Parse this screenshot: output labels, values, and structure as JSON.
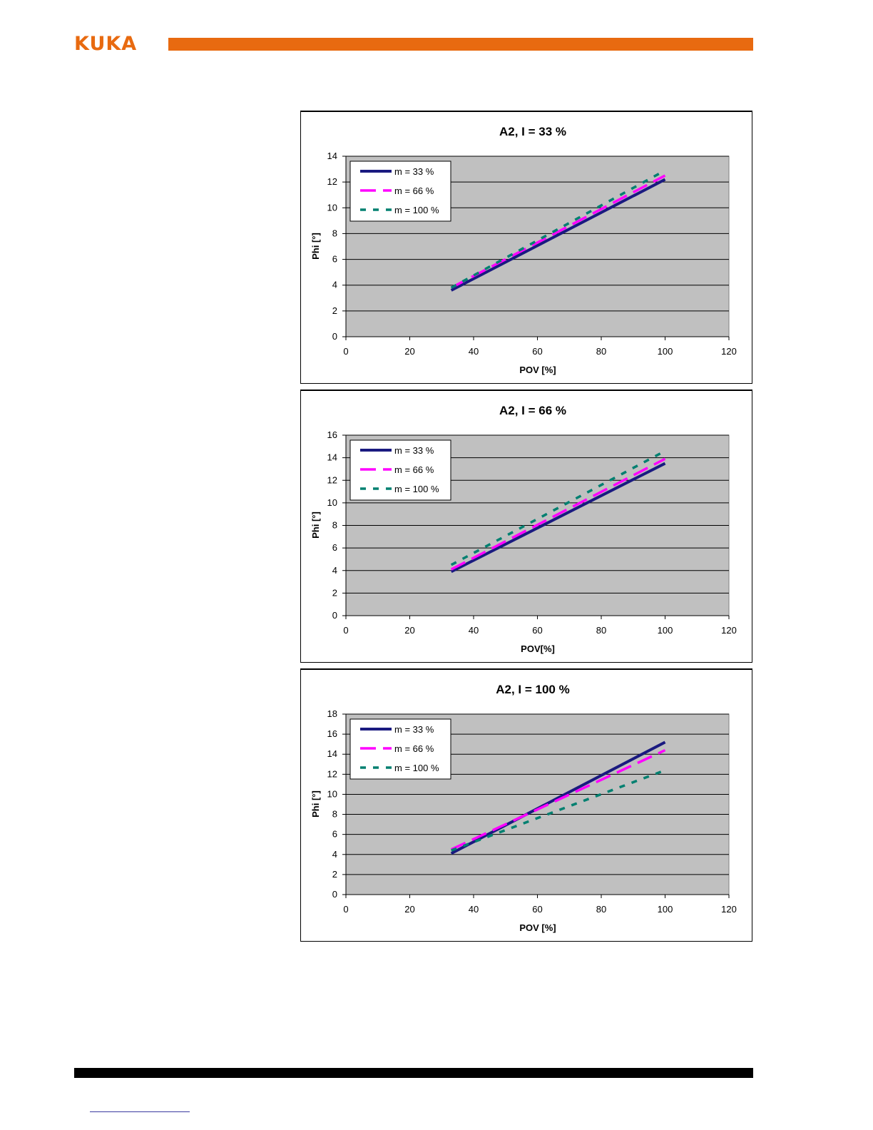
{
  "header": {
    "logo_text": "KUKA",
    "accent_color": "#E86A10"
  },
  "legend_labels": [
    "m = 33 %",
    "m = 66 %",
    "m = 100 %"
  ],
  "series_colors": [
    "#1a1a80",
    "#ff00ff",
    "#008070"
  ],
  "chart_data": [
    {
      "type": "line",
      "title": "A2,  I = 33 %",
      "xlabel": "POV [%]",
      "ylabel": "Phi [°]",
      "xlim": [
        0,
        120
      ],
      "ylim": [
        0,
        14
      ],
      "xticks": [
        0,
        20,
        40,
        60,
        80,
        100,
        120
      ],
      "yticks": [
        0,
        2,
        4,
        6,
        8,
        10,
        12,
        14
      ],
      "grid": true,
      "legend": "top-left",
      "series": [
        {
          "name": "m = 33 %",
          "x": [
            33,
            100
          ],
          "y": [
            3.6,
            12.2
          ]
        },
        {
          "name": "m = 66 %",
          "x": [
            33,
            100
          ],
          "y": [
            3.8,
            12.5
          ]
        },
        {
          "name": "m = 100 %",
          "x": [
            33,
            100
          ],
          "y": [
            3.8,
            12.9
          ]
        }
      ]
    },
    {
      "type": "line",
      "title": "A2,  I = 66 %",
      "xlabel": "POV[%]",
      "ylabel": "Phi [°]",
      "xlim": [
        0,
        120
      ],
      "ylim": [
        0,
        16
      ],
      "xticks": [
        0,
        20,
        40,
        60,
        80,
        100,
        120
      ],
      "yticks": [
        0,
        2,
        4,
        6,
        8,
        10,
        12,
        14,
        16
      ],
      "grid": true,
      "legend": "top-left",
      "series": [
        {
          "name": "m = 33 %",
          "x": [
            33,
            100
          ],
          "y": [
            3.9,
            13.5
          ]
        },
        {
          "name": "m = 66 %",
          "x": [
            33,
            100
          ],
          "y": [
            4.1,
            13.9
          ]
        },
        {
          "name": "m = 100 %",
          "x": [
            33,
            100
          ],
          "y": [
            4.5,
            14.6
          ]
        }
      ]
    },
    {
      "type": "line",
      "title": "A2,  I = 100 %",
      "xlabel": "POV [%]",
      "ylabel": "Phi [°]",
      "xlim": [
        0,
        120
      ],
      "ylim": [
        0,
        18
      ],
      "xticks": [
        0,
        20,
        40,
        60,
        80,
        100,
        120
      ],
      "yticks": [
        0,
        2,
        4,
        6,
        8,
        10,
        12,
        14,
        16,
        18
      ],
      "grid": true,
      "legend": "top-left",
      "series": [
        {
          "name": "m = 33 %",
          "x": [
            33,
            100
          ],
          "y": [
            4.1,
            15.2
          ]
        },
        {
          "name": "m = 66 %",
          "x": [
            33,
            100
          ],
          "y": [
            4.5,
            14.4
          ]
        },
        {
          "name": "m = 100 %",
          "x": [
            33,
            100
          ],
          "y": [
            4.4,
            12.4
          ]
        }
      ]
    }
  ]
}
